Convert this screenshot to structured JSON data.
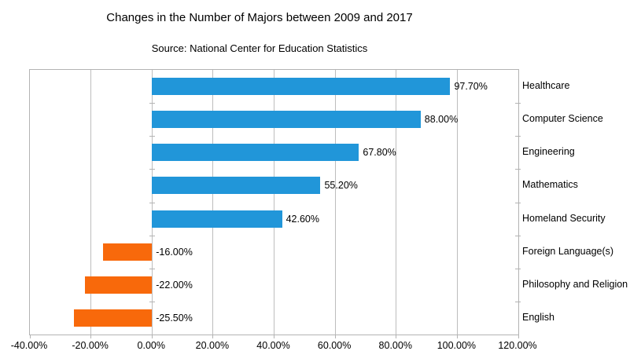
{
  "chart_data": {
    "type": "bar",
    "orientation": "horizontal",
    "title": "Changes in the Number of Majors between 2009 and 2017",
    "subtitle": "Source: National Center for Education Statistics",
    "categories": [
      "Healthcare",
      "Computer Science",
      "Engineering",
      "Mathematics",
      "Homeland Security",
      "Foreign Language(s)",
      "Philosophy and Religion",
      "English"
    ],
    "values": [
      97.7,
      88.0,
      67.8,
      55.2,
      42.6,
      -16.0,
      -22.0,
      -25.5
    ],
    "value_labels": [
      "97.70%",
      "88.00%",
      "67.80%",
      "55.20%",
      "42.60%",
      "-16.00%",
      "-22.00%",
      "-25.50%"
    ],
    "xlim": [
      -40,
      120
    ],
    "xtick_values": [
      -40,
      -20,
      0,
      20,
      40,
      60,
      80,
      100,
      120
    ],
    "xtick_labels": [
      "-40.00%",
      "-20.00%",
      "0.00%",
      "20.00%",
      "40.00%",
      "60.00%",
      "80.00%",
      "100.00%",
      "120.00%"
    ],
    "grid": "vertical-gridlines",
    "legend": "none",
    "colors": {
      "positive_bar": "#2196d9",
      "negative_bar": "#f8690b",
      "gridline": "#bdbdbd",
      "plot_border": "#b3b3b3",
      "text": "#000000",
      "background": "#ffffff"
    }
  }
}
